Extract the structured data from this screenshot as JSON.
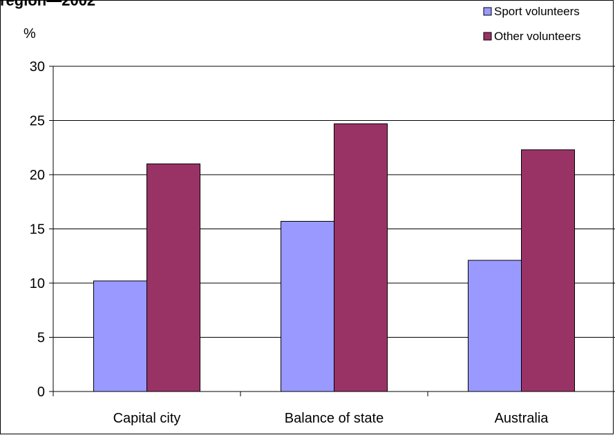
{
  "chart_data": {
    "type": "bar",
    "title": "region—2002",
    "ylabel": "%",
    "xlabel": "",
    "categories": [
      "Capital city",
      "Balance of state",
      "Australia"
    ],
    "series": [
      {
        "name": "Sport volunteers",
        "color": "#9999ff",
        "values": [
          10.2,
          15.7,
          12.1
        ]
      },
      {
        "name": "Other volunteers",
        "color": "#993366",
        "values": [
          21.0,
          24.7,
          22.3
        ]
      }
    ],
    "ylim": [
      0,
      30
    ],
    "yticks": [
      "0",
      "5",
      "10",
      "15",
      "20",
      "25",
      "30"
    ],
    "grid": true,
    "legend": "top-right"
  }
}
